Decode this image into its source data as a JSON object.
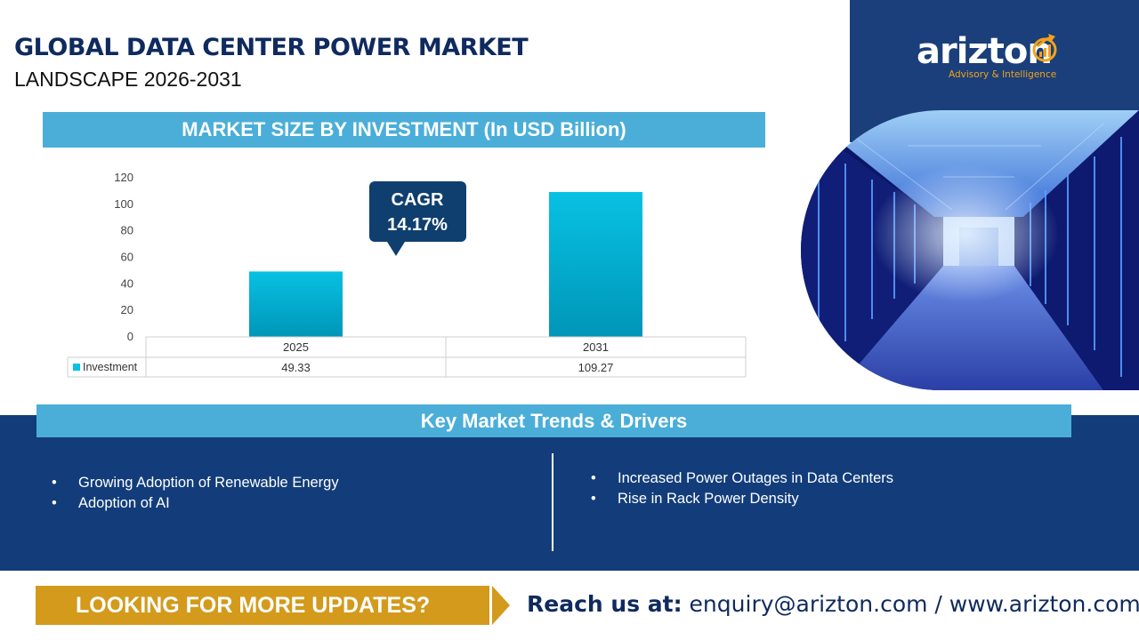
{
  "header": {
    "title": "GLOBAL DATA CENTER POWER MARKET",
    "subtitle": "LANDSCAPE 2026-2031"
  },
  "brand": {
    "logo_text": "arizton",
    "tagline": "Advisory & Intelligence"
  },
  "chart_section": {
    "title": "MARKET SIZE BY INVESTMENT (In USD Billion)"
  },
  "chart_data": {
    "type": "bar",
    "title": "MARKET SIZE BY INVESTMENT (In USD Billion)",
    "categories": [
      "2025",
      "2031"
    ],
    "series": [
      {
        "name": "Investment",
        "values": [
          49.33,
          109.27
        ]
      }
    ],
    "value_labels": [
      "49.33",
      "109.27"
    ],
    "ylim": [
      0,
      120
    ],
    "yticks": [
      "0",
      "20",
      "40",
      "60",
      "80",
      "100",
      "120"
    ],
    "grid": false,
    "data_table": true,
    "callout": {
      "line1": "CAGR",
      "line2": "14.17%"
    },
    "colors": {
      "bar_top": "#08c1e3",
      "bar_bottom": "#0096b8",
      "callout_bg": "#0f3f6e"
    }
  },
  "trends": {
    "title": "Key Market Trends & Drivers",
    "left": [
      "Growing Adoption of Renewable Energy",
      "Adoption of AI"
    ],
    "right": [
      "Increased Power Outages in Data Centers",
      "Rise in Rack Power Density"
    ]
  },
  "footer": {
    "cta": "LOOKING FOR MORE UPDATES?",
    "contact_label": "Reach us at:",
    "contact_value": " enquiry@arizton.com / www.arizton.com"
  },
  "colors": {
    "navy": "#123d7a",
    "light_blue": "#4aaed9",
    "gold": "#d39a1c",
    "title_navy": "#0f2a5e",
    "logo_accent": "#f3a21b"
  }
}
